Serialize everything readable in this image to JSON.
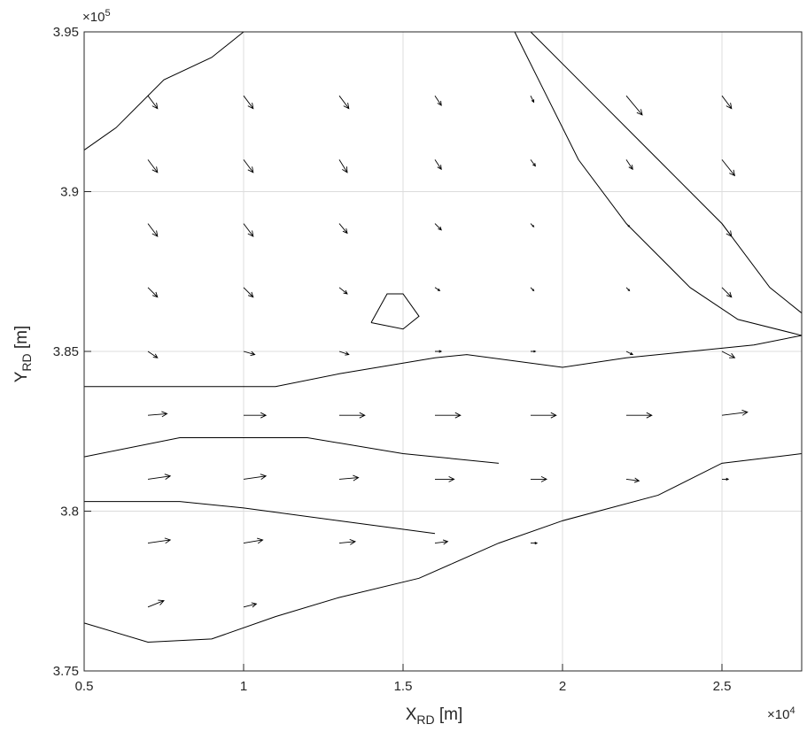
{
  "chart_data": {
    "type": "quiver",
    "x_label": {
      "main": "X",
      "sub": "RD",
      "unit": " [m]"
    },
    "y_label": {
      "main": "Y",
      "sub": "RD",
      "unit": " [m]"
    },
    "x_exponent": {
      "base": "×10",
      "power": "4"
    },
    "y_exponent": {
      "base": "×10",
      "power": "5"
    },
    "xlim": [
      0.5,
      2.75
    ],
    "ylim": [
      3.75,
      3.95
    ],
    "xticks": [
      0.5,
      1,
      1.5,
      2,
      2.5
    ],
    "yticks": [
      3.75,
      3.8,
      3.85,
      3.9,
      3.95
    ],
    "grid": true,
    "color": "#000000",
    "vectors": {
      "x": [
        0.7,
        1.0,
        1.3,
        1.6,
        1.9,
        2.2,
        2.5,
        0.7,
        1.0,
        1.3,
        1.6,
        1.9,
        2.2,
        2.5,
        0.7,
        1.0,
        1.3,
        1.6,
        1.9,
        2.2,
        2.5,
        0.7,
        1.0,
        1.3,
        1.6,
        1.9,
        2.2,
        2.5,
        0.7,
        1.0,
        1.3,
        1.6,
        1.9,
        2.2,
        2.5,
        0.7,
        1.0,
        1.3,
        1.6,
        1.9,
        2.2,
        2.5,
        0.7,
        1.0,
        1.3,
        1.6,
        1.9,
        2.2,
        2.5,
        0.7,
        1.0,
        1.3,
        1.6,
        1.9,
        0.7,
        1.0
      ],
      "y": [
        3.93,
        3.93,
        3.93,
        3.93,
        3.93,
        3.93,
        3.93,
        3.91,
        3.91,
        3.91,
        3.91,
        3.91,
        3.91,
        3.91,
        3.89,
        3.89,
        3.89,
        3.89,
        3.89,
        3.89,
        3.89,
        3.87,
        3.87,
        3.87,
        3.87,
        3.87,
        3.87,
        3.87,
        3.85,
        3.85,
        3.85,
        3.85,
        3.85,
        3.85,
        3.85,
        3.83,
        3.83,
        3.83,
        3.83,
        3.83,
        3.83,
        3.83,
        3.81,
        3.81,
        3.81,
        3.81,
        3.81,
        3.81,
        3.81,
        3.79,
        3.79,
        3.79,
        3.79,
        3.79,
        3.77,
        3.77
      ],
      "u": [
        0.03,
        0.03,
        0.03,
        0.02,
        0.01,
        0.05,
        0.03,
        0.03,
        0.03,
        0.025,
        0.02,
        0.015,
        0.02,
        0.04,
        0.03,
        0.03,
        0.025,
        0.02,
        0.01,
        0.01,
        0.03,
        0.03,
        0.03,
        0.025,
        0.015,
        0.01,
        0.01,
        0.03,
        0.03,
        0.035,
        0.03,
        0.02,
        0.015,
        0.02,
        0.04,
        0.06,
        0.07,
        0.08,
        0.08,
        0.08,
        0.08,
        0.08,
        0.07,
        0.07,
        0.06,
        0.06,
        0.05,
        0.04,
        0.02,
        0.07,
        0.06,
        0.05,
        0.04,
        0.02,
        0.05,
        0.04
      ],
      "v": [
        -0.004,
        -0.004,
        -0.004,
        -0.003,
        -0.002,
        -0.006,
        -0.004,
        -0.004,
        -0.004,
        -0.004,
        -0.003,
        -0.002,
        -0.003,
        -0.005,
        -0.004,
        -0.004,
        -0.003,
        -0.002,
        -0.001,
        -0.001,
        -0.004,
        -0.003,
        -0.003,
        -0.002,
        -0.001,
        -0.001,
        -0.001,
        -0.003,
        -0.002,
        -0.001,
        -0.001,
        0,
        0,
        -0.001,
        -0.002,
        0.0005,
        0,
        0,
        0,
        0,
        0,
        0.001,
        0.001,
        0.001,
        0.0005,
        0,
        0,
        -0.0005,
        0,
        0.001,
        0.001,
        0.0005,
        0.0005,
        0,
        0.002,
        0.001
      ]
    },
    "contours": [
      {
        "x": [
          0.5,
          1.1,
          1.3,
          1.6,
          1.7,
          2.0,
          2.2,
          2.4,
          2.6,
          2.75
        ],
        "y": [
          3.839,
          3.839,
          3.843,
          3.848,
          3.849,
          3.845,
          3.848,
          3.85,
          3.852,
          3.855
        ]
      },
      {
        "x": [
          0.5,
          0.7,
          0.9,
          1.1,
          1.3,
          1.55,
          1.8,
          2.0,
          2.3,
          2.5,
          2.75
        ],
        "y": [
          3.765,
          3.759,
          3.76,
          3.767,
          3.773,
          3.779,
          3.79,
          3.797,
          3.805,
          3.815,
          3.818
        ]
      },
      {
        "x": [
          0.5,
          0.6,
          0.75,
          0.9,
          1.0
        ],
        "y": [
          3.913,
          3.92,
          3.935,
          3.942,
          3.95
        ]
      },
      {
        "x": [
          1.9,
          2.1,
          2.3,
          2.5,
          2.65,
          2.75
        ],
        "y": [
          3.95,
          3.93,
          3.91,
          3.89,
          3.87,
          3.862
        ]
      },
      {
        "x": [
          1.85,
          1.95,
          2.05,
          2.2,
          2.4,
          2.55,
          2.75
        ],
        "y": [
          3.95,
          3.93,
          3.91,
          3.89,
          3.87,
          3.86,
          3.855
        ]
      },
      {
        "x": [
          1.4,
          1.45,
          1.5,
          1.55,
          1.5,
          1.4
        ],
        "y": [
          3.859,
          3.868,
          3.868,
          3.861,
          3.857,
          3.859
        ]
      },
      {
        "x": [
          0.5,
          0.8,
          1.2,
          1.5,
          1.8
        ],
        "y": [
          3.817,
          3.823,
          3.823,
          3.818,
          3.815
        ]
      },
      {
        "x": [
          0.5,
          0.8,
          1.0,
          1.3,
          1.6
        ],
        "y": [
          3.803,
          3.803,
          3.801,
          3.797,
          3.793
        ]
      }
    ]
  }
}
